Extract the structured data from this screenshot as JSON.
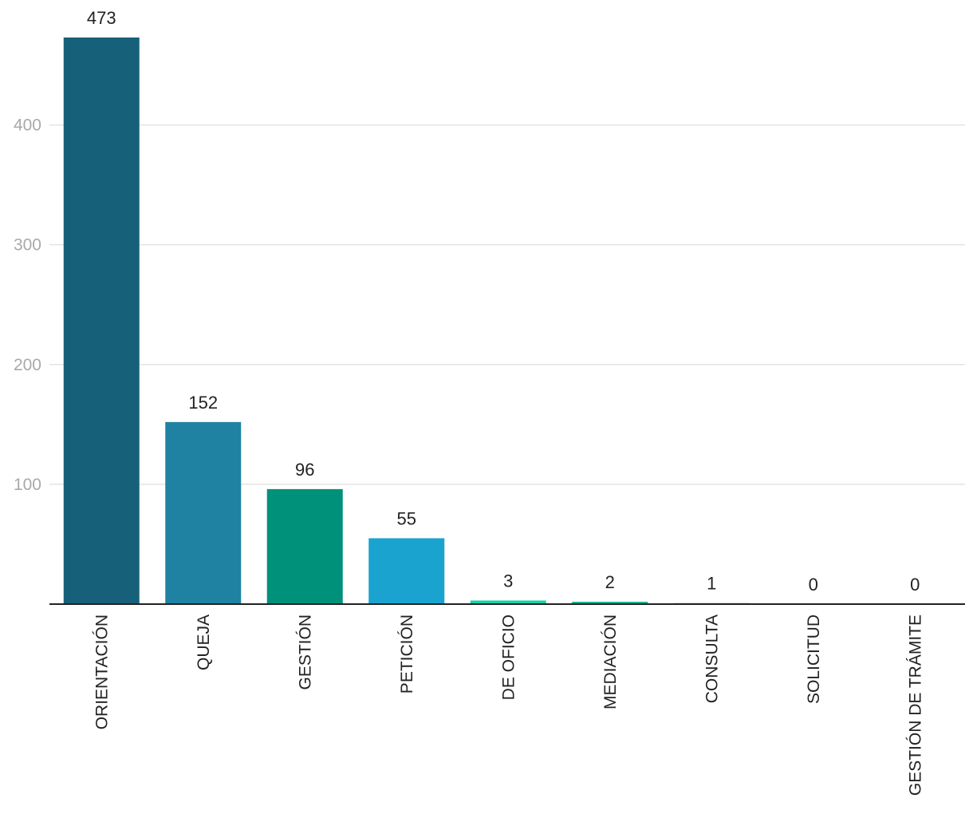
{
  "chart_data": {
    "type": "bar",
    "title": "",
    "xlabel": "",
    "ylabel": "",
    "categories": [
      "ORIENTACIÓN",
      "QUEJA",
      "GESTIÓN",
      "PETICIÓN",
      "DE OFICIO",
      "MEDIACIÓN",
      "CONSULTA",
      "SOLICITUD",
      "GESTIÓN DE TRÁMITE"
    ],
    "values": [
      473,
      152,
      96,
      55,
      3,
      2,
      1,
      0,
      0
    ],
    "value_labels": [
      "473",
      "152",
      "96",
      "55",
      "3",
      "2",
      "1",
      "0",
      "0"
    ],
    "colors": [
      "#17607a",
      "#1f82a3",
      "#00917a",
      "#1aa3ce",
      "#13d3a8",
      "#13b896",
      "#bfbfbf",
      "#bfbfbf",
      "#bfbfbf"
    ],
    "ylim": [
      0,
      473
    ],
    "yticks": [
      100,
      200,
      300,
      400
    ],
    "ytick_labels": [
      "100",
      "200",
      "300",
      "400"
    ],
    "grid": true,
    "legend": "none"
  }
}
